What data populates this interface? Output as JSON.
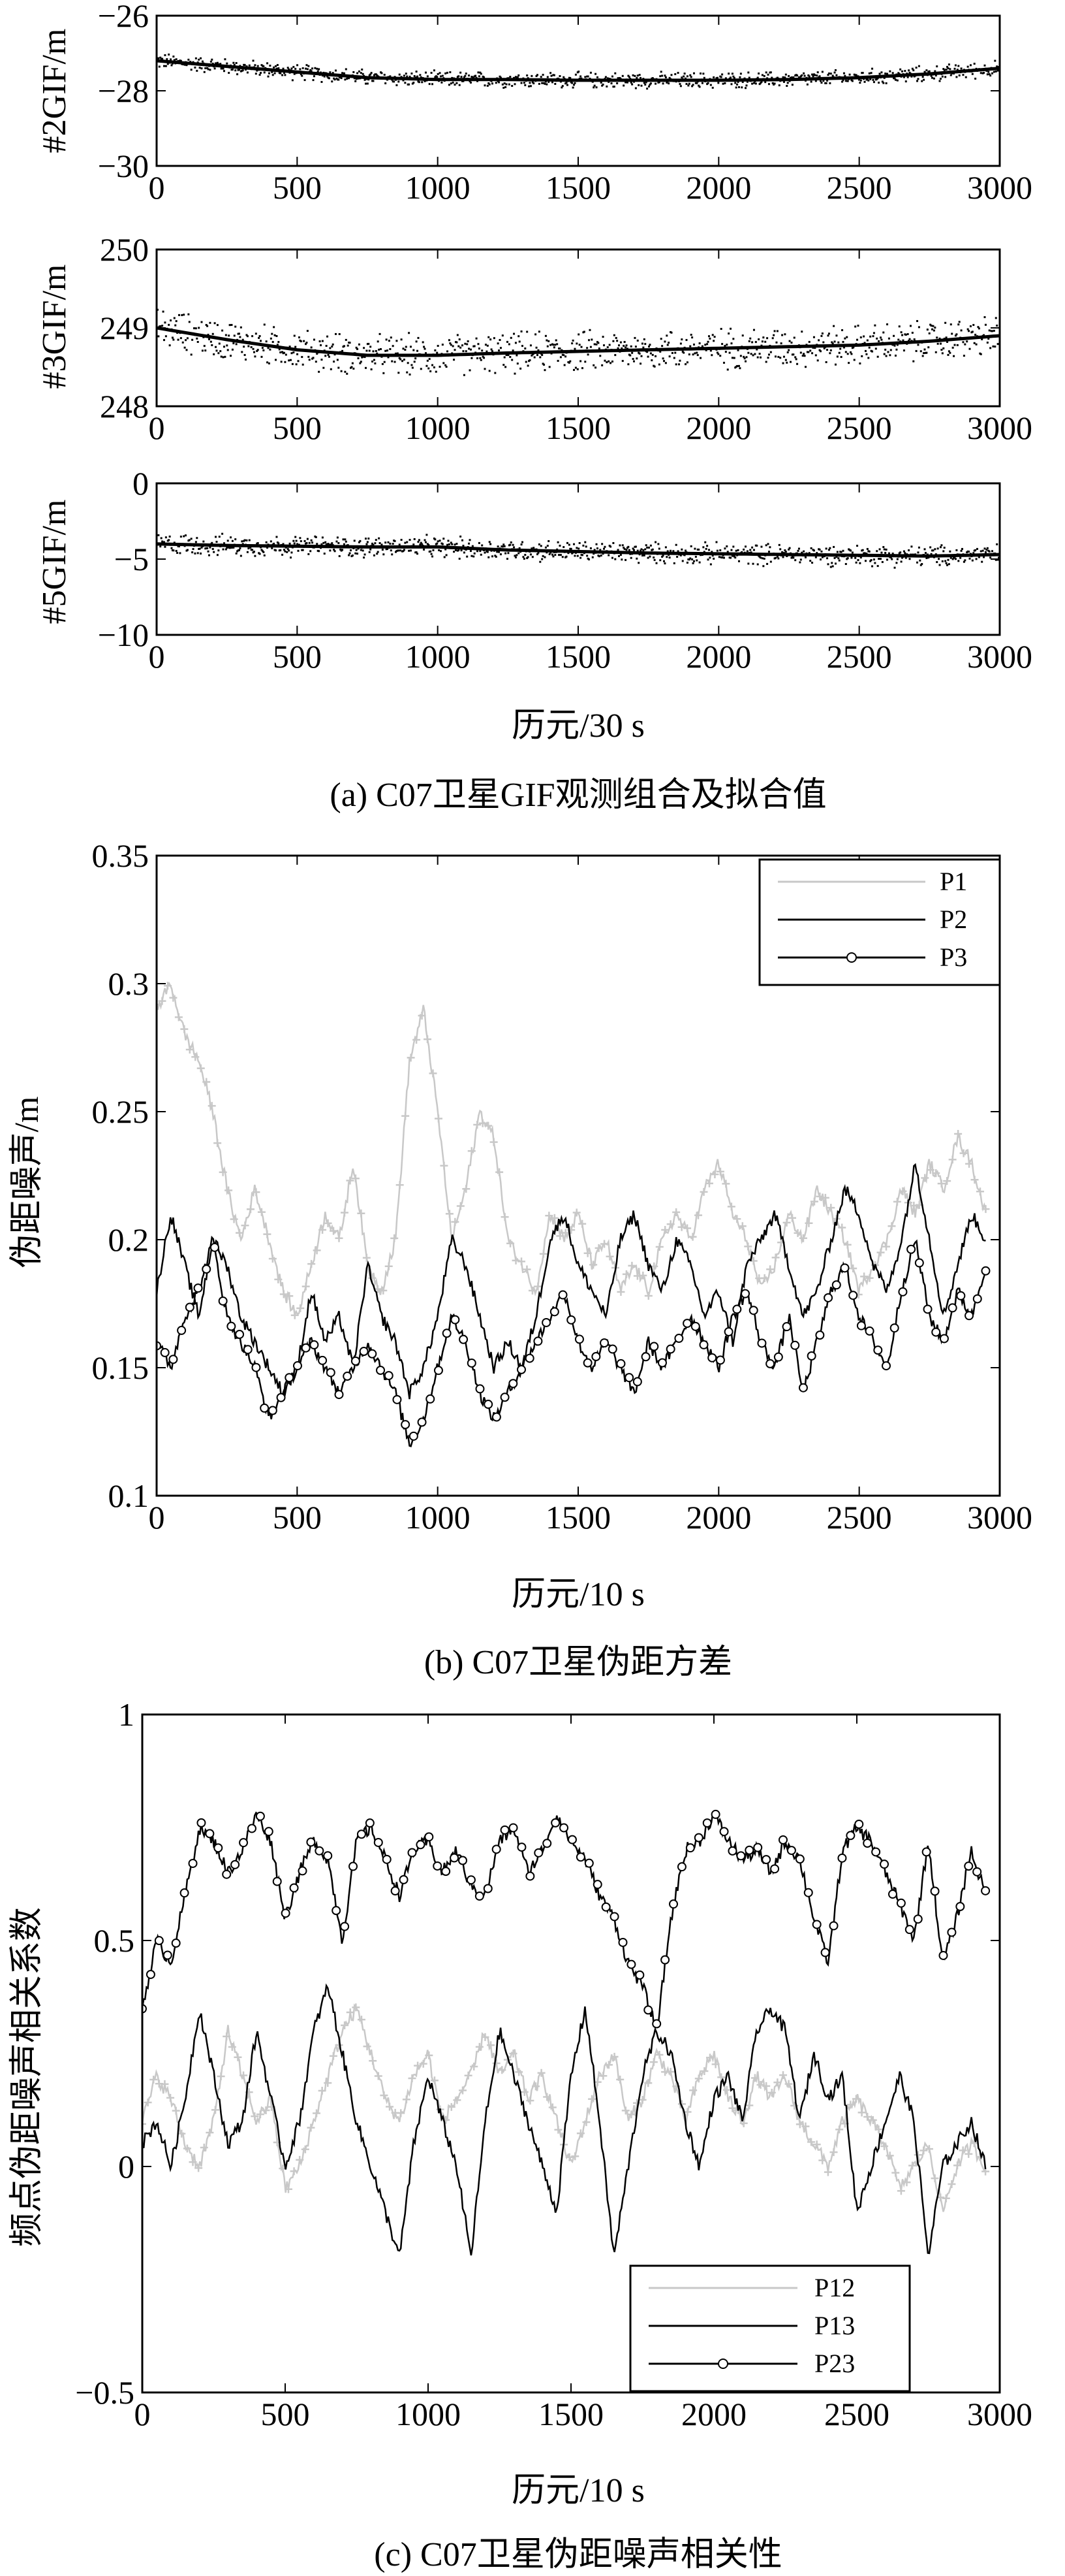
{
  "chart_data": [
    {
      "type": "line",
      "panel": "a1",
      "ylabel": "#2GIF/m",
      "xlim": [
        0,
        3000
      ],
      "ylim": [
        -30,
        -26
      ],
      "xticks": [
        "0",
        "500",
        "1000",
        "1500",
        "2000",
        "2500",
        "3000"
      ],
      "yticks": [
        "−26",
        "−28",
        "−30"
      ],
      "series": [
        {
          "style": "scatter-dots",
          "color": "#000000",
          "noise": 0.18,
          "x": [
            0,
            250,
            500,
            750,
            1000,
            1250,
            1500,
            1750,
            2000,
            2250,
            2500,
            2750,
            3000
          ],
          "values": [
            -27.2,
            -27.35,
            -27.5,
            -27.65,
            -27.7,
            -27.7,
            -27.72,
            -27.72,
            -27.72,
            -27.7,
            -27.65,
            -27.55,
            -27.4
          ]
        },
        {
          "style": "fit-line",
          "color": "#000000",
          "x": [
            0,
            250,
            500,
            750,
            1000,
            1250,
            1500,
            1750,
            2000,
            2250,
            2500,
            2750,
            3000
          ],
          "values": [
            -27.2,
            -27.35,
            -27.5,
            -27.65,
            -27.7,
            -27.7,
            -27.72,
            -27.72,
            -27.72,
            -27.7,
            -27.65,
            -27.55,
            -27.4
          ]
        }
      ]
    },
    {
      "type": "line",
      "panel": "a2",
      "ylabel": "#3GIF/m",
      "xlim": [
        0,
        3000
      ],
      "ylim": [
        248,
        250
      ],
      "xticks": [
        "0",
        "500",
        "1000",
        "1500",
        "2000",
        "2500",
        "3000"
      ],
      "yticks": [
        "250",
        "249",
        "248"
      ],
      "series": [
        {
          "style": "scatter-dots",
          "color": "#000000",
          "noise": 0.22,
          "x": [
            0,
            250,
            500,
            750,
            1000,
            1250,
            1500,
            1750,
            2000,
            2250,
            2500,
            2750,
            3000
          ],
          "values": [
            249.0,
            248.85,
            248.72,
            248.65,
            248.65,
            248.68,
            248.7,
            248.72,
            248.74,
            248.76,
            248.78,
            248.83,
            248.9
          ]
        },
        {
          "style": "fit-line",
          "color": "#000000",
          "x": [
            0,
            250,
            500,
            750,
            1000,
            1250,
            1500,
            1750,
            2000,
            2250,
            2500,
            2750,
            3000
          ],
          "values": [
            249.0,
            248.85,
            248.72,
            248.65,
            248.65,
            248.68,
            248.7,
            248.72,
            248.74,
            248.76,
            248.78,
            248.83,
            248.9
          ]
        }
      ]
    },
    {
      "type": "line",
      "panel": "a3",
      "ylabel": "#5GIF/m",
      "xlim": [
        0,
        3000
      ],
      "ylim": [
        -10,
        0
      ],
      "xticks": [
        "0",
        "500",
        "1000",
        "1500",
        "2000",
        "2500",
        "3000"
      ],
      "yticks": [
        "0",
        "−5",
        "−10"
      ],
      "xlabel": "历元/30 s",
      "caption": "(a) C07卫星GIF观测组合及拟合值",
      "series": [
        {
          "style": "scatter-dots",
          "color": "#000000",
          "noise": 0.6,
          "x": [
            0,
            250,
            500,
            750,
            1000,
            1250,
            1500,
            1750,
            2000,
            2250,
            2500,
            2750,
            3000
          ],
          "values": [
            -4.0,
            -4.1,
            -4.15,
            -4.2,
            -4.2,
            -4.4,
            -4.5,
            -4.6,
            -4.65,
            -4.7,
            -4.75,
            -4.8,
            -4.7
          ]
        },
        {
          "style": "fit-line",
          "color": "#000000",
          "x": [
            0,
            250,
            500,
            750,
            1000,
            1250,
            1500,
            1750,
            2000,
            2250,
            2500,
            2750,
            3000
          ],
          "values": [
            -4.0,
            -4.1,
            -4.15,
            -4.2,
            -4.2,
            -4.4,
            -4.5,
            -4.6,
            -4.65,
            -4.7,
            -4.75,
            -4.8,
            -4.7
          ]
        }
      ]
    },
    {
      "type": "line",
      "panel": "b",
      "ylabel": "伪距噪声/m",
      "xlabel": "历元/10 s",
      "caption": "(b) C07卫星伪距方差",
      "xlim": [
        0,
        3000
      ],
      "ylim": [
        0.1,
        0.35
      ],
      "xticks": [
        "0",
        "500",
        "1000",
        "1500",
        "2000",
        "2500",
        "3000"
      ],
      "yticks": [
        "0.35",
        "0.3",
        "0.25",
        "0.2",
        "0.15",
        "0.1"
      ],
      "legend": "top-right",
      "series": [
        {
          "name": "P1",
          "color": "#c8c8c8",
          "marker": "plus",
          "x": [
            0,
            50,
            100,
            150,
            200,
            250,
            300,
            350,
            400,
            450,
            500,
            550,
            600,
            650,
            700,
            750,
            800,
            850,
            900,
            950,
            1000,
            1050,
            1100,
            1150,
            1200,
            1250,
            1300,
            1350,
            1400,
            1450,
            1500,
            1550,
            1600,
            1650,
            1700,
            1750,
            1800,
            1850,
            1900,
            1950,
            2000,
            2050,
            2100,
            2150,
            2200,
            2250,
            2300,
            2350,
            2400,
            2450,
            2500,
            2550,
            2600,
            2650,
            2700,
            2750,
            2800,
            2850,
            2900,
            2950
          ],
          "values": [
            0.29,
            0.3,
            0.28,
            0.27,
            0.25,
            0.22,
            0.2,
            0.22,
            0.2,
            0.18,
            0.17,
            0.19,
            0.21,
            0.2,
            0.23,
            0.19,
            0.18,
            0.2,
            0.27,
            0.29,
            0.25,
            0.2,
            0.22,
            0.25,
            0.24,
            0.2,
            0.19,
            0.18,
            0.21,
            0.2,
            0.21,
            0.19,
            0.2,
            0.18,
            0.19,
            0.18,
            0.2,
            0.21,
            0.2,
            0.22,
            0.23,
            0.21,
            0.2,
            0.18,
            0.19,
            0.21,
            0.2,
            0.22,
            0.21,
            0.2,
            0.18,
            0.19,
            0.2,
            0.22,
            0.21,
            0.23,
            0.22,
            0.24,
            0.23,
            0.21
          ]
        },
        {
          "name": "P2",
          "color": "#000000",
          "marker": "none",
          "x": [
            0,
            50,
            100,
            150,
            200,
            250,
            300,
            350,
            400,
            450,
            500,
            550,
            600,
            650,
            700,
            750,
            800,
            850,
            900,
            950,
            1000,
            1050,
            1100,
            1150,
            1200,
            1250,
            1300,
            1350,
            1400,
            1450,
            1500,
            1550,
            1600,
            1650,
            1700,
            1750,
            1800,
            1850,
            1900,
            1950,
            2000,
            2050,
            2100,
            2150,
            2200,
            2250,
            2300,
            2350,
            2400,
            2450,
            2500,
            2550,
            2600,
            2650,
            2700,
            2750,
            2800,
            2850,
            2900,
            2950
          ],
          "values": [
            0.18,
            0.21,
            0.19,
            0.17,
            0.2,
            0.19,
            0.17,
            0.16,
            0.15,
            0.14,
            0.15,
            0.18,
            0.16,
            0.17,
            0.15,
            0.19,
            0.17,
            0.16,
            0.14,
            0.15,
            0.17,
            0.2,
            0.19,
            0.17,
            0.15,
            0.16,
            0.15,
            0.17,
            0.2,
            0.21,
            0.19,
            0.18,
            0.17,
            0.2,
            0.21,
            0.19,
            0.18,
            0.2,
            0.19,
            0.17,
            0.18,
            0.16,
            0.19,
            0.2,
            0.21,
            0.19,
            0.17,
            0.18,
            0.2,
            0.22,
            0.21,
            0.19,
            0.18,
            0.2,
            0.23,
            0.2,
            0.17,
            0.19,
            0.21,
            0.2
          ]
        },
        {
          "name": "P3",
          "color": "#000000",
          "marker": "circle",
          "x": [
            0,
            50,
            100,
            150,
            200,
            250,
            300,
            350,
            400,
            450,
            500,
            550,
            600,
            650,
            700,
            750,
            800,
            850,
            900,
            950,
            1000,
            1050,
            1100,
            1150,
            1200,
            1250,
            1300,
            1350,
            1400,
            1450,
            1500,
            1550,
            1600,
            1650,
            1700,
            1750,
            1800,
            1850,
            1900,
            1950,
            2000,
            2050,
            2100,
            2150,
            2200,
            2250,
            2300,
            2350,
            2400,
            2450,
            2500,
            2550,
            2600,
            2650,
            2700,
            2750,
            2800,
            2850,
            2900,
            2950
          ],
          "values": [
            0.16,
            0.15,
            0.17,
            0.18,
            0.2,
            0.17,
            0.16,
            0.15,
            0.13,
            0.14,
            0.15,
            0.16,
            0.15,
            0.14,
            0.15,
            0.16,
            0.15,
            0.14,
            0.12,
            0.13,
            0.15,
            0.17,
            0.16,
            0.14,
            0.13,
            0.14,
            0.15,
            0.16,
            0.17,
            0.18,
            0.16,
            0.15,
            0.16,
            0.15,
            0.14,
            0.16,
            0.15,
            0.16,
            0.17,
            0.16,
            0.15,
            0.17,
            0.18,
            0.16,
            0.15,
            0.17,
            0.14,
            0.16,
            0.18,
            0.19,
            0.17,
            0.16,
            0.15,
            0.18,
            0.2,
            0.17,
            0.16,
            0.18,
            0.17,
            0.19
          ]
        }
      ]
    },
    {
      "type": "line",
      "panel": "c",
      "ylabel": "频点伪距噪声相关系数",
      "xlabel": "历元/10 s",
      "caption": "(c) C07卫星伪距噪声相关性",
      "xlim": [
        0,
        3000
      ],
      "ylim": [
        -0.5,
        1
      ],
      "xticks": [
        "0",
        "500",
        "1000",
        "1500",
        "2000",
        "2500",
        "3000"
      ],
      "yticks": [
        "1",
        "0.5",
        "0",
        "−0.5"
      ],
      "legend": "bottom-right",
      "series": [
        {
          "name": "P12",
          "color": "#c8c8c8",
          "marker": "plus",
          "x": [
            0,
            50,
            100,
            150,
            200,
            250,
            300,
            350,
            400,
            450,
            500,
            550,
            600,
            650,
            700,
            750,
            800,
            850,
            900,
            950,
            1000,
            1050,
            1100,
            1150,
            1200,
            1250,
            1300,
            1350,
            1400,
            1450,
            1500,
            1550,
            1600,
            1650,
            1700,
            1750,
            1800,
            1850,
            1900,
            1950,
            2000,
            2050,
            2100,
            2150,
            2200,
            2250,
            2300,
            2350,
            2400,
            2450,
            2500,
            2550,
            2600,
            2650,
            2700,
            2750,
            2800,
            2850,
            2900,
            2950
          ],
          "values": [
            0.1,
            0.2,
            0.15,
            0.05,
            0.0,
            0.1,
            0.3,
            0.2,
            0.1,
            0.15,
            -0.05,
            0.0,
            0.1,
            0.2,
            0.3,
            0.35,
            0.25,
            0.15,
            0.1,
            0.2,
            0.25,
            0.1,
            0.15,
            0.2,
            0.3,
            0.2,
            0.25,
            0.15,
            0.2,
            0.1,
            0.0,
            0.1,
            0.2,
            0.25,
            0.1,
            0.15,
            0.25,
            0.2,
            0.1,
            0.2,
            0.25,
            0.15,
            0.1,
            0.2,
            0.15,
            0.2,
            0.1,
            0.05,
            0.0,
            0.1,
            0.15,
            0.1,
            0.05,
            -0.05,
            0.0,
            0.05,
            -0.1,
            0.0,
            0.05,
            0.0
          ]
        },
        {
          "name": "P13",
          "color": "#000000",
          "marker": "none",
          "x": [
            0,
            50,
            100,
            150,
            200,
            250,
            300,
            350,
            400,
            450,
            500,
            550,
            600,
            650,
            700,
            750,
            800,
            850,
            900,
            950,
            1000,
            1050,
            1100,
            1150,
            1200,
            1250,
            1300,
            1350,
            1400,
            1450,
            1500,
            1550,
            1600,
            1650,
            1700,
            1750,
            1800,
            1850,
            1900,
            1950,
            2000,
            2050,
            2100,
            2150,
            2200,
            2250,
            2300,
            2350,
            2400,
            2450,
            2500,
            2550,
            2600,
            2650,
            2700,
            2750,
            2800,
            2850,
            2900,
            2950
          ],
          "values": [
            0.05,
            0.1,
            0.0,
            0.15,
            0.35,
            0.2,
            0.05,
            0.1,
            0.3,
            0.15,
            0.0,
            0.1,
            0.3,
            0.4,
            0.25,
            0.1,
            0.0,
            -0.1,
            -0.2,
            0.05,
            0.2,
            0.1,
            0.0,
            -0.2,
            0.1,
            0.3,
            0.2,
            0.1,
            0.0,
            -0.1,
            0.2,
            0.35,
            0.1,
            -0.2,
            0.0,
            0.2,
            0.3,
            0.25,
            0.1,
            0.0,
            0.15,
            0.2,
            0.1,
            0.3,
            0.35,
            0.3,
            0.1,
            0.25,
            0.15,
            0.2,
            -0.1,
            0.0,
            0.1,
            0.2,
            0.1,
            -0.2,
            0.0,
            0.05,
            0.1,
            0.0
          ]
        },
        {
          "name": "P23",
          "color": "#000000",
          "marker": "circle",
          "x": [
            0,
            50,
            100,
            150,
            200,
            250,
            300,
            350,
            400,
            450,
            500,
            550,
            600,
            650,
            700,
            750,
            800,
            850,
            900,
            950,
            1000,
            1050,
            1100,
            1150,
            1200,
            1250,
            1300,
            1350,
            1400,
            1450,
            1500,
            1550,
            1600,
            1650,
            1700,
            1750,
            1800,
            1850,
            1900,
            1950,
            2000,
            2050,
            2100,
            2150,
            2200,
            2250,
            2300,
            2350,
            2400,
            2450,
            2500,
            2550,
            2600,
            2650,
            2700,
            2750,
            2800,
            2850,
            2900,
            2950
          ],
          "values": [
            0.35,
            0.5,
            0.45,
            0.6,
            0.75,
            0.72,
            0.65,
            0.7,
            0.78,
            0.72,
            0.55,
            0.65,
            0.72,
            0.68,
            0.5,
            0.72,
            0.75,
            0.68,
            0.6,
            0.7,
            0.72,
            0.65,
            0.7,
            0.62,
            0.6,
            0.72,
            0.75,
            0.65,
            0.7,
            0.78,
            0.72,
            0.68,
            0.6,
            0.55,
            0.45,
            0.4,
            0.3,
            0.55,
            0.7,
            0.72,
            0.78,
            0.72,
            0.68,
            0.7,
            0.65,
            0.72,
            0.68,
            0.55,
            0.45,
            0.7,
            0.75,
            0.72,
            0.65,
            0.58,
            0.5,
            0.72,
            0.45,
            0.55,
            0.7,
            0.6
          ]
        }
      ]
    }
  ]
}
